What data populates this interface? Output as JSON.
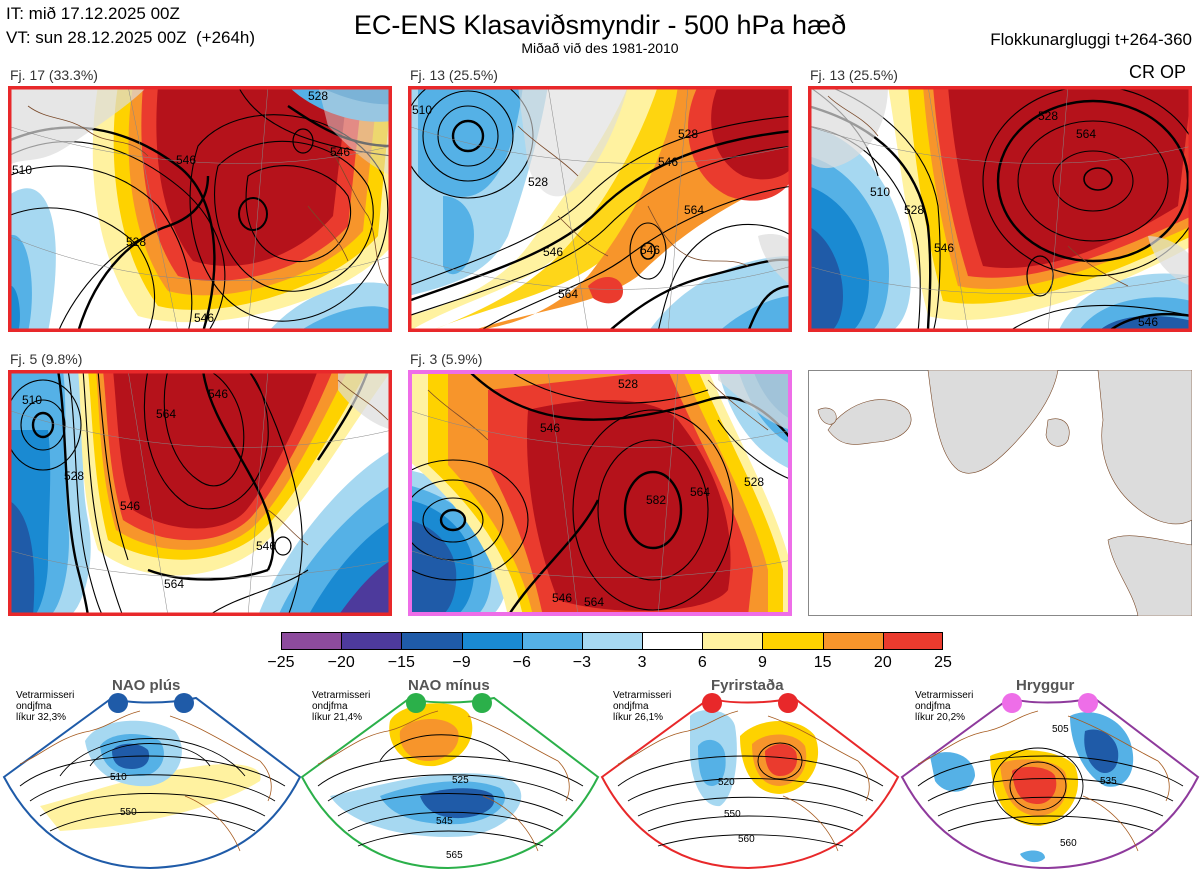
{
  "header": {
    "issue_time": "IT: mið 17.12.2025 00Z",
    "valid_time": "VT: sun 28.12.2025 00Z",
    "lead": "(+264h)",
    "title": "EC-ENS Klasaviðsmyndir - 500 hPa hæð",
    "subtitle": "Miðað við des 1981-2010",
    "cluster_window": "Flokkunargluggi t+264-360"
  },
  "panels": [
    {
      "label": "Fj. 17 (33.3%)",
      "border": "#e8282a",
      "contours": [
        "510",
        "528",
        "546",
        "546",
        "546",
        "528"
      ]
    },
    {
      "label": "Fj. 13 (25.5%)",
      "border": "#e8282a",
      "contours": [
        "510",
        "528",
        "546",
        "528",
        "546",
        "564",
        "546",
        "564"
      ]
    },
    {
      "label": "Fj. 13 (25.5%)",
      "border": "#e8282a",
      "contours": [
        "528",
        "546",
        "564",
        "510",
        "528",
        "546"
      ],
      "tag": "CR OP"
    },
    {
      "label": "Fj. 5 (9.8%)",
      "border": "#e8282a",
      "contours": [
        "510",
        "528",
        "546",
        "564",
        "546",
        "564",
        "546"
      ]
    },
    {
      "label": "Fj. 3 (5.9%)",
      "border": "#ee6ee8",
      "contours": [
        "528",
        "546",
        "564",
        "582",
        "564",
        "546",
        "528"
      ]
    }
  ],
  "colorbar": {
    "ticks": [
      "−25",
      "−20",
      "−15",
      "−9",
      "−6",
      "−3",
      "3",
      "6",
      "9",
      "15",
      "20",
      "25"
    ],
    "colors": [
      "#8d4b9d",
      "#4d3a9c",
      "#1f5ba8",
      "#1a8ad2",
      "#55b1e6",
      "#a6d8f1",
      "#ffffff",
      "#fff2a0",
      "#fed200",
      "#f7952b",
      "#ea3b2e",
      "#b5121b"
    ]
  },
  "regimes": [
    {
      "name": "NAO plús",
      "stat_line1": "Vetrarmisseri",
      "stat_line2": "ondjfma",
      "stat_line3": "líkur 32,3%",
      "color": "#1f5ba8",
      "contours": [
        "510",
        "550"
      ]
    },
    {
      "name": "NAO mínus",
      "stat_line1": "Vetrarmisseri",
      "stat_line2": "ondjfma",
      "stat_line3": "líkur 21,4%",
      "color": "#2bb04a",
      "contours": [
        "525",
        "545",
        "565"
      ]
    },
    {
      "name": "Fyrirstaða",
      "stat_line1": "Vetrarmisseri",
      "stat_line2": "ondjfma",
      "stat_line3": "líkur 26,1%",
      "color": "#e8282a",
      "contours": [
        "520",
        "550",
        "560"
      ]
    },
    {
      "name": "Hryggur",
      "stat_line1": "Vetrarmisseri",
      "stat_line2": "ondjfma",
      "stat_line3": "líkur 20,2%",
      "color": "#ee6ee8",
      "contours": [
        "505",
        "535",
        "560"
      ]
    }
  ]
}
